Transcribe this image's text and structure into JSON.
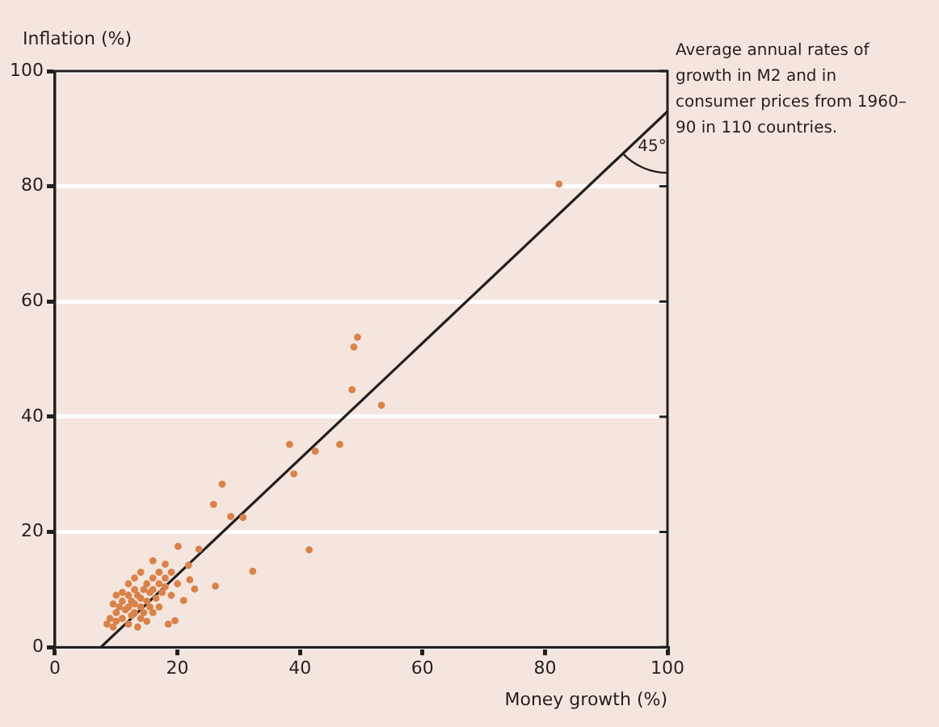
{
  "chart_data": {
    "type": "scatter",
    "xlabel": "Money growth (%)",
    "ylabel": "Inflation (%)",
    "xlim": [
      0,
      100
    ],
    "ylim": [
      0,
      100
    ],
    "xticks": [
      0,
      20,
      40,
      60,
      80,
      100
    ],
    "yticks": [
      0,
      20,
      40,
      60,
      80,
      100
    ],
    "grid": "y",
    "marker": "circle",
    "annotations": [
      "45°",
      "Average annual rates of growth in M2 and in consumer prices from 1960–90 in 110 countries."
    ],
    "series": [
      {
        "type": "scatter",
        "color": "#d9824a",
        "x": [
          82.3,
          49.4,
          48.8,
          48.5,
          53.3,
          38.3,
          42.5,
          46.5,
          39,
          27.3,
          25.9,
          28.7,
          30.7,
          41.5,
          32.3,
          26.2,
          20.1,
          23.5,
          21.8,
          22,
          22.8,
          21,
          19.6,
          18,
          8.5,
          9,
          9.5,
          10,
          10,
          10.5,
          11,
          11,
          11.5,
          12,
          12,
          12,
          12.5,
          12.5,
          13,
          13,
          13,
          13.5,
          13.5,
          14,
          14,
          14,
          14.5,
          14.5,
          15,
          15,
          15,
          15.5,
          15.5,
          16,
          16,
          16,
          16.5,
          17,
          17,
          17,
          17.5,
          18,
          18,
          18.5,
          19,
          19,
          20,
          11,
          12,
          13,
          14,
          16,
          10,
          9.5
        ],
        "values": [
          80.4,
          53.8,
          52.1,
          44.7,
          42,
          35.2,
          34,
          35.2,
          30.1,
          28.3,
          24.8,
          22.7,
          22.5,
          16.9,
          13.2,
          10.6,
          17.5,
          17,
          14.2,
          11.7,
          10.1,
          8.1,
          4.6,
          14.4,
          4,
          5,
          3.5,
          4.5,
          6,
          7,
          5,
          8,
          6.5,
          4,
          7,
          9,
          5.5,
          8,
          6,
          7.5,
          10,
          3.5,
          9,
          5,
          7,
          8.5,
          6,
          10,
          4.5,
          8,
          11,
          7,
          9.5,
          6,
          10,
          12,
          8.5,
          7,
          11,
          13,
          9.5,
          10.5,
          12,
          4,
          13,
          9,
          11,
          9.5,
          11,
          12,
          13,
          15,
          9,
          7.5
        ]
      },
      {
        "type": "line",
        "color": "#231f20",
        "x": [
          7.5,
          100
        ],
        "values": [
          0,
          93
        ],
        "marker": "none"
      }
    ]
  }
}
